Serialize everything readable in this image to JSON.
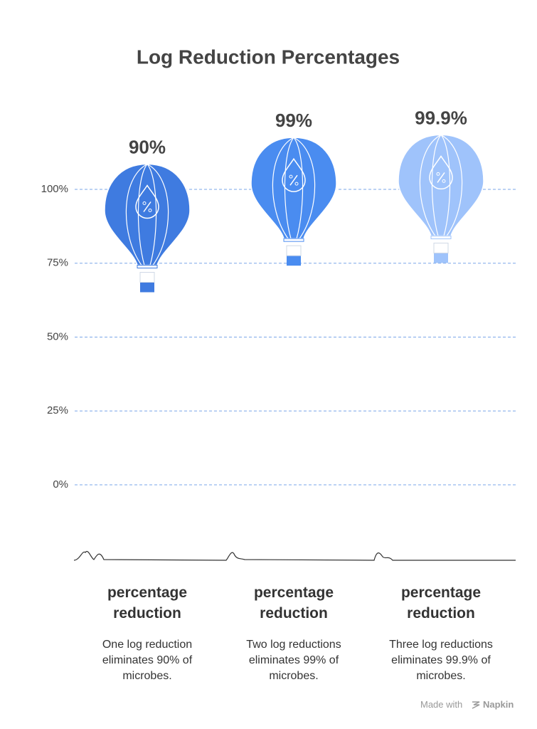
{
  "chart_data": {
    "type": "balloon",
    "title": "Log Reduction Percentages",
    "categories": [
      "percentage reduction",
      "percentage reduction",
      "percentage reduction"
    ],
    "descriptions": [
      "One log reduction eliminates 90% of microbes.",
      "Two log reductions eliminates 99% of microbes.",
      "Three log reductions eliminates 99.9% of microbes."
    ],
    "values": [
      90,
      99,
      99.9
    ],
    "value_labels": [
      "90%",
      "99%",
      "99.9%"
    ],
    "colors": [
      "#3f7be0",
      "#4a8cf0",
      "#9fc3fb"
    ],
    "ylim": [
      0,
      100
    ],
    "yticks": [
      {
        "value": 0,
        "label": "0%"
      },
      {
        "value": 25,
        "label": "25%"
      },
      {
        "value": 50,
        "label": "50%"
      },
      {
        "value": 75,
        "label": "75%"
      },
      {
        "value": 100,
        "label": "100%"
      }
    ],
    "grid": true
  },
  "footer": {
    "made_with": "Made with",
    "brand": "Napkin"
  }
}
